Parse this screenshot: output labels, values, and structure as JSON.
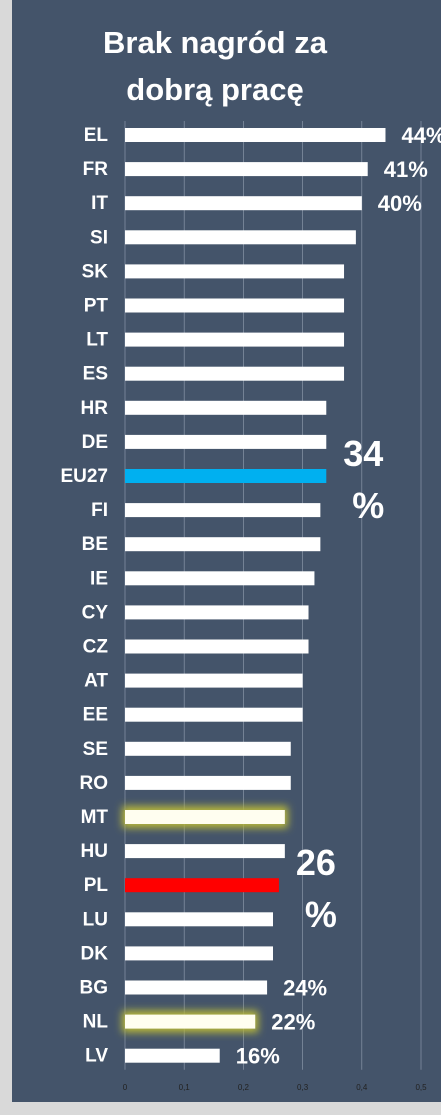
{
  "chart_data": {
    "type": "hbar",
    "title": [
      "Brak nagród za",
      "dobrą pracę"
    ],
    "categories": [
      "EL",
      "FR",
      "IT",
      "SI",
      "SK",
      "PT",
      "LT",
      "ES",
      "HR",
      "DE",
      "EU27",
      "FI",
      "BE",
      "IE",
      "CY",
      "CZ",
      "AT",
      "EE",
      "SE",
      "RO",
      "MT",
      "HU",
      "PL",
      "LU",
      "DK",
      "BG",
      "NL",
      "LV"
    ],
    "values": [
      0.44,
      0.41,
      0.4,
      0.39,
      0.37,
      0.37,
      0.37,
      0.37,
      0.34,
      0.34,
      0.34,
      0.33,
      0.33,
      0.32,
      0.31,
      0.31,
      0.3,
      0.3,
      0.28,
      0.28,
      0.27,
      0.27,
      0.26,
      0.25,
      0.25,
      0.24,
      0.22,
      0.16
    ],
    "value_labels": [
      "44%",
      "41%",
      "40%",
      null,
      null,
      null,
      null,
      null,
      null,
      null,
      "34 %",
      null,
      null,
      null,
      null,
      null,
      null,
      null,
      null,
      null,
      null,
      null,
      "26 %",
      null,
      null,
      "24%",
      "22%",
      "16%"
    ],
    "colors": [
      "#ffffff",
      "#ffffff",
      "#ffffff",
      "#ffffff",
      "#ffffff",
      "#ffffff",
      "#ffffff",
      "#ffffff",
      "#ffffff",
      "#ffffff",
      "#00b0f0",
      "#ffffff",
      "#ffffff",
      "#ffffff",
      "#ffffff",
      "#ffffff",
      "#ffffff",
      "#ffffff",
      "#ffffff",
      "#ffffff",
      "#fffef0",
      "#ffffff",
      "#ff0000",
      "#ffffff",
      "#ffffff",
      "#ffffff",
      "#fffef0",
      "#ffffff"
    ],
    "glow": {
      "color": "#b8b83a",
      "categories": [
        20,
        26
      ]
    },
    "xlim": [
      0,
      0.5
    ],
    "xticks": [
      0,
      {
        "value": 0.1,
        "label": "0,1"
      },
      {
        "value": 0.2,
        "label": "0,2"
      },
      {
        "value": 0.3,
        "label": "0,3"
      },
      {
        "value": 0.4,
        "label": "0,4"
      },
      {
        "value": 0.5,
        "label": "0,5"
      }
    ],
    "grid": true
  }
}
